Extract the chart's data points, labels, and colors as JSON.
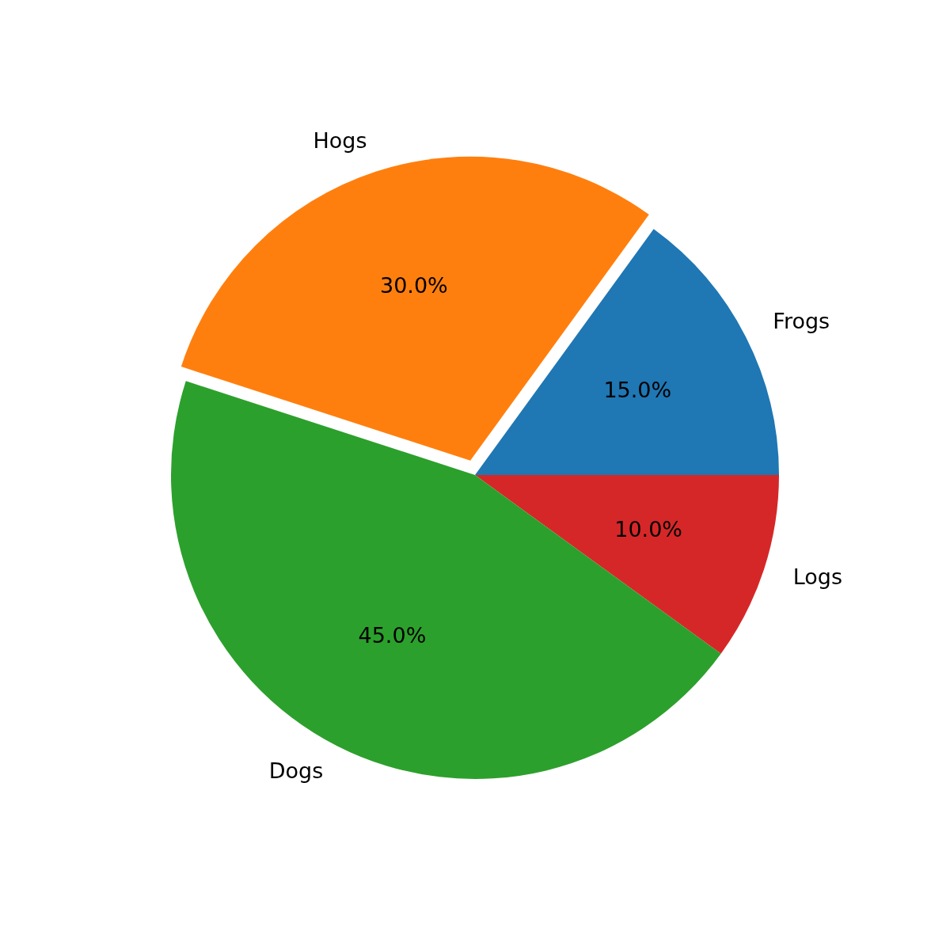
{
  "chart_data": {
    "type": "pie",
    "categories": [
      "Frogs",
      "Hogs",
      "Dogs",
      "Logs"
    ],
    "values": [
      15,
      30,
      45,
      10
    ],
    "colors": [
      "#1f77b4",
      "#ff7f0e",
      "#2ca02c",
      "#d62728"
    ],
    "value_labels": [
      "15.0%",
      "30.0%",
      "45.0%",
      "10.0%"
    ]
  }
}
